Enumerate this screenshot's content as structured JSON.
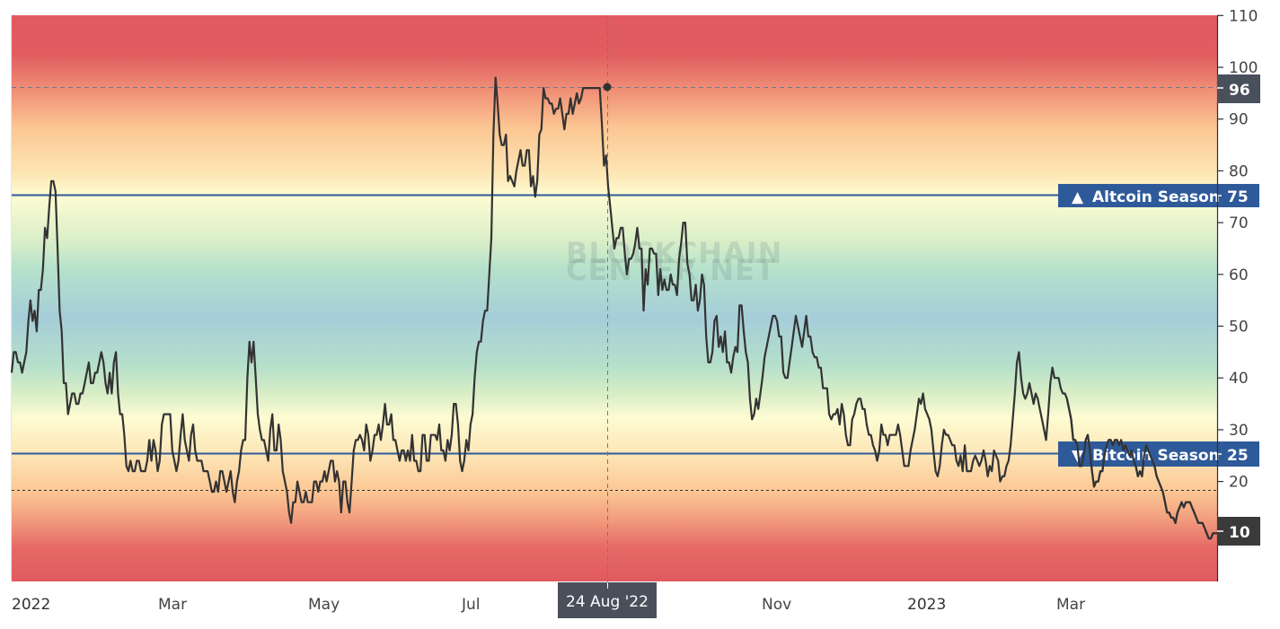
{
  "chart_data": {
    "type": "line",
    "title": "",
    "xlabel": "",
    "ylabel": "",
    "ylim": [
      0,
      110
    ],
    "y_ticks": [
      10,
      20,
      30,
      40,
      50,
      60,
      70,
      80,
      90,
      100,
      110
    ],
    "x_tick_labels": [
      "2022",
      "Mar",
      "May",
      "Jul",
      "Nov",
      "2023",
      "Mar"
    ],
    "grid": false,
    "watermark": [
      "BLOCKCHAIN",
      "CENTER.NET"
    ],
    "thresholds": [
      {
        "name": "Altcoin Season",
        "value": 75,
        "marker": "▲",
        "color": "#2f5a9a"
      },
      {
        "name": "Bitcoin Season",
        "value": 25,
        "marker": "▼",
        "color": "#2f5a9a"
      }
    ],
    "dotted_reference": 18,
    "crosshair": {
      "date_label": "24 Aug '22",
      "value": 96
    },
    "last_value": 10,
    "series": [
      {
        "name": "Altcoin Season Index",
        "color": "#333333",
        "values": [
          41,
          45,
          45,
          43,
          43,
          41,
          43,
          45,
          51,
          55,
          51,
          53,
          49,
          57,
          57,
          61,
          69,
          67,
          73,
          78,
          78,
          76,
          65,
          53,
          49,
          39,
          39,
          33,
          35,
          37,
          37,
          35,
          35,
          37,
          37,
          39,
          41,
          43,
          39,
          39,
          41,
          41,
          43,
          45,
          43,
          39,
          37,
          41,
          37,
          43,
          45,
          37,
          33,
          33,
          29,
          23,
          22,
          24,
          22,
          22,
          24,
          24,
          22,
          22,
          22,
          24,
          28,
          24,
          28,
          26,
          22,
          24,
          31,
          33,
          33,
          33,
          33,
          26,
          24,
          22,
          24,
          29,
          33,
          28,
          26,
          24,
          29,
          31,
          26,
          24,
          24,
          24,
          22,
          22,
          22,
          20,
          18,
          18,
          20,
          18,
          22,
          22,
          20,
          18,
          20,
          22,
          18,
          16,
          20,
          22,
          26,
          28,
          28,
          40,
          47,
          43,
          47,
          40,
          33,
          30,
          28,
          28,
          26,
          24,
          30,
          33,
          26,
          26,
          31,
          28,
          22,
          20,
          18,
          14,
          12,
          16,
          16,
          20,
          18,
          16,
          16,
          18,
          16,
          16,
          16,
          20,
          20,
          18,
          20,
          20,
          22,
          20,
          22,
          24,
          24,
          20,
          22,
          20,
          14,
          20,
          20,
          16,
          14,
          20,
          26,
          28,
          28,
          29,
          28,
          26,
          31,
          29,
          24,
          26,
          29,
          29,
          31,
          28,
          31,
          35,
          31,
          31,
          33,
          28,
          28,
          26,
          24,
          26,
          26,
          24,
          26,
          24,
          29,
          24,
          24,
          22,
          22,
          29,
          29,
          24,
          24,
          29,
          29,
          29,
          28,
          31,
          26,
          26,
          24,
          28,
          26,
          29,
          35,
          35,
          31,
          24,
          22,
          24,
          28,
          26,
          31,
          33,
          40,
          45,
          47,
          47,
          51,
          53,
          53,
          60,
          67,
          87,
          98,
          93,
          87,
          85,
          85,
          87,
          78,
          79,
          78,
          77,
          80,
          82,
          84,
          81,
          81,
          84,
          84,
          77,
          79,
          75,
          78,
          87,
          88,
          96,
          94,
          94,
          93,
          93,
          91,
          92,
          92,
          94,
          91,
          88,
          91,
          91,
          94,
          91,
          93,
          95,
          93,
          94,
          96,
          96,
          96,
          96,
          96,
          96,
          96,
          96,
          96,
          89,
          81,
          83,
          77,
          73,
          69,
          65,
          67,
          67,
          69,
          69,
          64,
          60,
          63,
          63,
          64,
          66,
          69,
          65,
          65,
          53,
          61,
          58,
          65,
          65,
          64,
          64,
          56,
          61,
          57,
          59,
          57,
          57,
          60,
          58,
          58,
          56,
          63,
          66,
          70,
          70,
          62,
          60,
          55,
          55,
          58,
          53,
          55,
          60,
          58,
          48,
          43,
          43,
          45,
          51,
          52,
          46,
          48,
          45,
          49,
          43,
          43,
          41,
          44,
          46,
          45,
          54,
          54,
          49,
          45,
          43,
          36,
          32,
          33,
          36,
          34,
          37,
          40,
          44,
          46,
          48,
          50,
          52,
          52,
          51,
          48,
          48,
          41,
          40,
          40,
          43,
          46,
          49,
          52,
          50,
          48,
          46,
          49,
          52,
          48,
          48,
          45,
          44,
          44,
          42,
          42,
          38,
          38,
          38,
          33,
          32,
          33,
          33,
          34,
          31,
          35,
          33,
          29,
          27,
          27,
          32,
          33,
          35,
          36,
          36,
          34,
          34,
          31,
          29,
          29,
          27,
          26,
          24,
          26,
          31,
          29,
          29,
          27,
          29,
          29,
          29,
          29,
          31,
          29,
          26,
          23,
          23,
          23,
          26,
          28,
          30,
          33,
          36,
          35,
          37,
          34,
          33,
          32,
          30,
          26,
          22,
          21,
          23,
          27,
          30,
          29,
          29,
          28,
          27,
          27,
          24,
          23,
          25,
          22,
          27,
          22,
          22,
          22,
          24,
          25,
          24,
          23,
          24,
          26,
          24,
          21,
          23,
          22,
          26,
          25,
          24,
          20,
          21,
          21,
          23,
          24,
          27,
          32,
          37,
          43,
          45,
          40,
          37,
          36,
          37,
          39,
          37,
          35,
          37,
          36,
          34,
          32,
          30,
          28,
          33,
          39,
          42,
          40,
          40,
          40,
          38,
          37,
          37,
          36,
          34,
          32,
          28,
          28,
          27,
          23,
          23,
          25,
          28,
          29,
          26,
          22,
          19,
          20,
          20,
          22,
          22,
          25,
          27,
          28,
          28,
          27,
          28,
          28,
          27,
          28,
          26,
          27,
          26,
          25,
          26,
          24,
          23,
          21,
          22,
          21,
          25,
          27,
          26,
          25,
          24,
          23,
          21,
          20,
          19,
          18,
          16,
          14,
          14,
          13,
          13,
          12,
          14,
          15,
          16,
          15,
          16,
          16,
          16,
          15,
          14,
          13,
          12,
          12,
          12,
          11,
          10,
          9,
          9,
          10,
          10,
          10
        ]
      }
    ]
  },
  "axis": {
    "y_labels": [
      "110",
      "100",
      "90",
      "80",
      "70",
      "60",
      "50",
      "40",
      "30",
      "20"
    ],
    "x_labels": {
      "x2022": "2022",
      "mar1": "Mar",
      "may": "May",
      "jul": "Jul",
      "nov": "Nov",
      "x2023": "2023",
      "mar2": "Mar"
    }
  },
  "labels": {
    "crosshair_date": "24 Aug '22",
    "crosshair_value": "96",
    "altcoin_marker": "▲",
    "altcoin_text": "Altcoin Season",
    "altcoin_value": "75",
    "bitcoin_marker": "▼",
    "bitcoin_text": "Bitcoin Season",
    "bitcoin_value": "25",
    "last_value": "10",
    "watermark_line1": "BLOCKCHAIN",
    "watermark_line2": "CENTER.NET"
  },
  "colors": {
    "threshold_line": "#2f5a9a",
    "threshold_label_bg": "#2f5a9a",
    "crosshair_label_bg": "#4a4f5c",
    "last_value_bg": "#3a3a3a",
    "series_line": "#333333",
    "band_red": "#e05a5f",
    "band_orange": "#fcc890",
    "band_yellow": "#fdfbd2",
    "band_green": "#bfe5c9",
    "band_blue": "#a6cfd9"
  }
}
